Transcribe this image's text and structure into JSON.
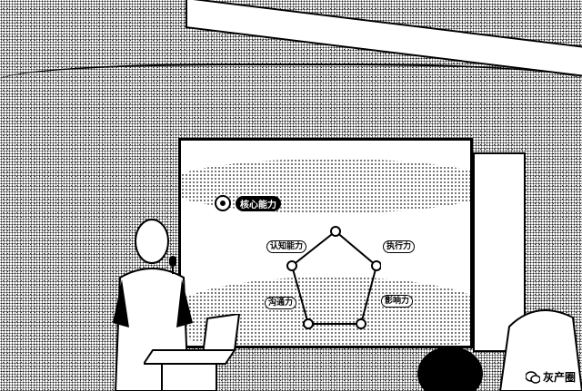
{
  "slide": {
    "header_label": "核心能力",
    "nodes": [
      {
        "label": ""
      },
      {
        "label": "认知能力"
      },
      {
        "label": "执行力"
      },
      {
        "label": "沟通力"
      },
      {
        "label": "影响力"
      },
      {
        "label": ""
      }
    ]
  },
  "watermark": {
    "text": "灰产圈"
  },
  "icons": {
    "speaker_mic": "microphone-icon",
    "watermark_logo": "wechat-icon"
  }
}
